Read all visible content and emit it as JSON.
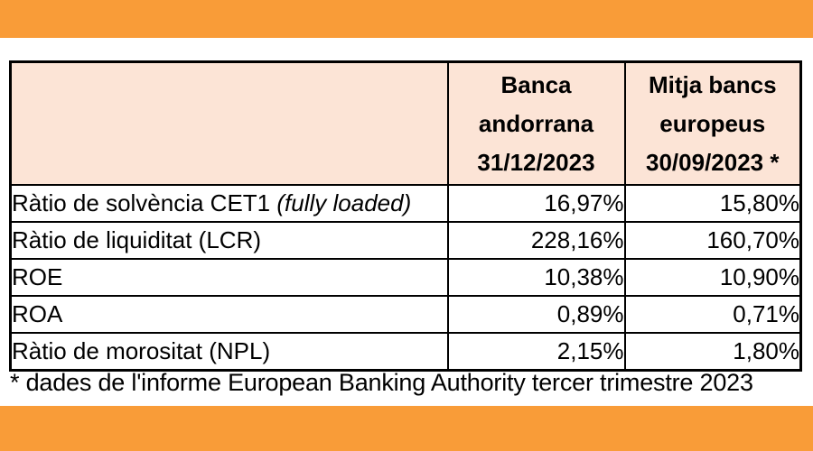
{
  "figure": {
    "header": {
      "corner_label": "",
      "col1_lines": [
        "Banca",
        "andorrana",
        "31/12/2023"
      ],
      "col2_lines": [
        "Mitja bancs",
        "europeus",
        "30/09/2023 *"
      ]
    },
    "rows": [
      {
        "label": "Ràtio de solvència CET1 ",
        "label_italic": "(fully loaded)",
        "banca_andorrana": "16,97%",
        "mitja_bancs_europeus": "15,80%"
      },
      {
        "label": "Ràtio de liquiditat (LCR)",
        "label_italic": "",
        "banca_andorrana": "228,16%",
        "mitja_bancs_europeus": "160,70%"
      },
      {
        "label": "ROE",
        "label_italic": "",
        "banca_andorrana": "10,38%",
        "mitja_bancs_europeus": "10,90%"
      },
      {
        "label": "ROA",
        "label_italic": "",
        "banca_andorrana": "0,89%",
        "mitja_bancs_europeus": "0,71%"
      },
      {
        "label": "Ràtio de morositat (NPL)",
        "label_italic": "",
        "banca_andorrana": "2,15%",
        "mitja_bancs_europeus": "1,80%"
      }
    ],
    "footnote": "* dades de l'informe European Banking Authority tercer trimestre 2023"
  },
  "colors": {
    "frame_orange": "#F99C38",
    "header_fill": "#FCE4D6",
    "border": "#000000",
    "text": "#000000"
  },
  "chart_data": {
    "type": "table",
    "title": "",
    "columns": [
      "",
      "Banca andorrana 31/12/2023",
      "Mitja bancs europeus 30/09/2023 *"
    ],
    "categories": [
      "Ràtio de solvència CET1 (fully loaded)",
      "Ràtio de liquiditat (LCR)",
      "ROE",
      "ROA",
      "Ràtio de morositat (NPL)"
    ],
    "series": [
      {
        "name": "Banca andorrana 31/12/2023",
        "values": [
          16.97,
          228.16,
          10.38,
          0.89,
          2.15
        ]
      },
      {
        "name": "Mitja bancs europeus 30/09/2023 *",
        "values": [
          15.8,
          160.7,
          10.9,
          0.71,
          1.8
        ]
      }
    ],
    "rows": [
      [
        "Ràtio de solvència CET1 (fully loaded)",
        "16,97%",
        "15,80%"
      ],
      [
        "Ràtio de liquiditat (LCR)",
        "228,16%",
        "160,70%"
      ],
      [
        "ROE",
        "10,38%",
        "10,90%"
      ],
      [
        "ROA",
        "0,89%",
        "0,71%"
      ],
      [
        "Ràtio de morositat (NPL)",
        "2,15%",
        "1,80%"
      ]
    ],
    "footnote": "* dades de l'informe European Banking Authority tercer trimestre 2023",
    "value_format": "percent, comma decimal separator",
    "layout": "orange frame bars top and bottom, peach header fill, black 2px grid borders"
  }
}
